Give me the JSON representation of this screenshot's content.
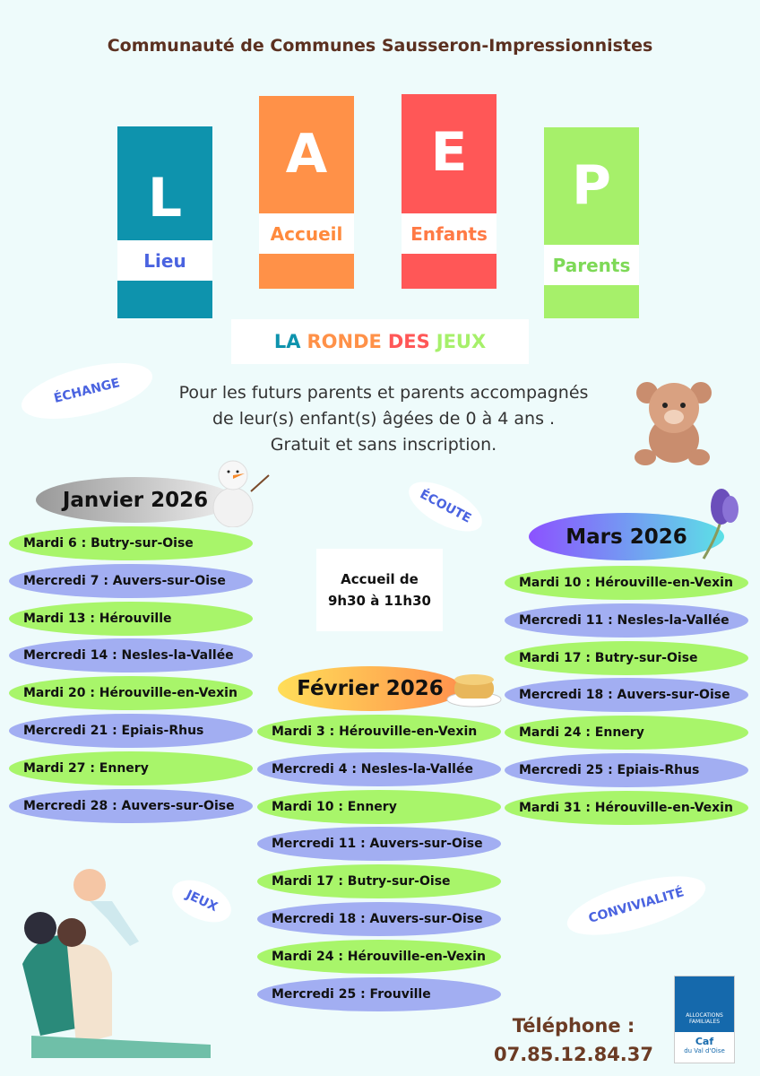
{
  "title": "Communauté de Communes Sausseron-Impressionnistes",
  "blocks": [
    {
      "letter": "L",
      "label": "Lieu",
      "color": "#0e93ad",
      "label_color": "#4a63e0"
    },
    {
      "letter": "A",
      "label": "Accueil",
      "color": "#ff9148",
      "label_color": "#ff8a3d"
    },
    {
      "letter": "E",
      "label": "Enfants",
      "color": "#ff5757",
      "label_color": "#ff7a45"
    },
    {
      "letter": "P",
      "label": "Parents",
      "color": "#a6f06a",
      "label_color": "#7ed957"
    }
  ],
  "ronde": {
    "w1": "LA",
    "w2": "RONDE",
    "w3": "DES",
    "w4": "JEUX"
  },
  "badges": {
    "echange": "ÉCHANGE",
    "ecoute": "ÉCOUTE",
    "jeux": "JEUX",
    "convivialite": "CONVIVIALITÉ"
  },
  "intro": [
    "Pour les futurs parents et parents accompagnés",
    "de leur(s) enfant(s) âgées de 0 à 4 ans .",
    "Gratuit et sans inscription."
  ],
  "accueil": [
    "Accueil de",
    "9h30 à 11h30"
  ],
  "janvier": {
    "title": "Janvier 2026",
    "items": [
      "Mardi 6 : Butry-sur-Oise",
      "Mercredi 7 : Auvers-sur-Oise",
      "Mardi 13 : Hérouville",
      "Mercredi 14 : Nesles-la-Vallée",
      "Mardi 20 : Hérouville-en-Vexin",
      "Mercredi 21 : Epiais-Rhus",
      "Mardi 27 : Ennery",
      "Mercredi 28 : Auvers-sur-Oise"
    ]
  },
  "fevrier": {
    "title": "Février 2026",
    "items": [
      "Mardi 3 : Hérouville-en-Vexin",
      "Mercredi 4 : Nesles-la-Vallée",
      "Mardi 10 : Ennery",
      "Mercredi 11 : Auvers-sur-Oise",
      "Mardi 17 : Butry-sur-Oise",
      "Mercredi 18 : Auvers-sur-Oise",
      "Mardi 24 : Hérouville-en-Vexin",
      "Mercredi 25 : Frouville"
    ]
  },
  "mars": {
    "title": "Mars 2026",
    "items": [
      "Mardi 10 : Hérouville-en-Vexin",
      "Mercredi 11 : Nesles-la-Vallée",
      "Mardi 17 : Butry-sur-Oise",
      "Mercredi 18 : Auvers-sur-Oise",
      "Mardi 24 : Ennery",
      "Mercredi 25 : Epiais-Rhus",
      "Mardi 31 : Hérouville-en-Vexin"
    ]
  },
  "phone": {
    "label": "Téléphone :",
    "number": "07.85.12.84.37"
  },
  "caf": {
    "line1": "ALLOCATIONS",
    "line2": "FAMILIALES",
    "line3": "Caf",
    "line4": "du Val d'Oise"
  }
}
